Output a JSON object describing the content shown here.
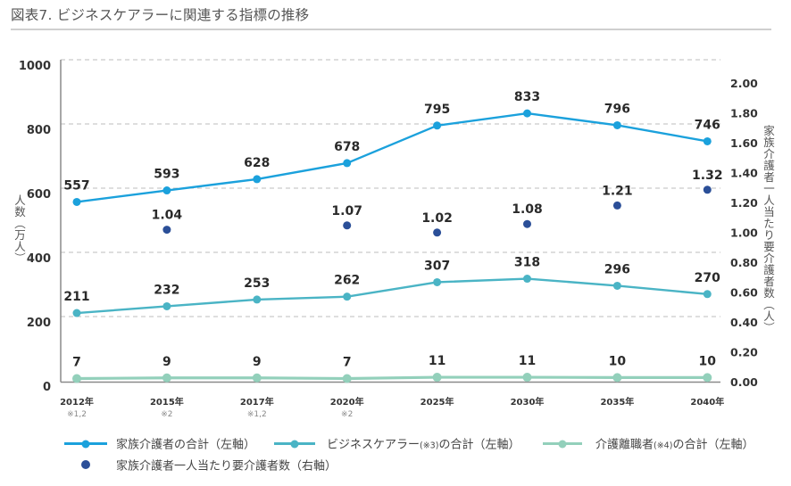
{
  "title": "図表7. ビジネスケアラーに関連する指標の推移",
  "chart_data": {
    "type": "line",
    "title": "図表7. ビジネスケアラーに関連する指標の推移",
    "categories": [
      "2012年",
      "2015年",
      "2017年",
      "2020年",
      "2025年",
      "2030年",
      "2035年",
      "2040年"
    ],
    "category_notes": [
      "※1,2",
      "※2",
      "※1,2",
      "※2",
      "",
      "",
      "",
      ""
    ],
    "left_axis": {
      "label": "人数（万人）",
      "range": [
        0,
        1000
      ],
      "ticks": [
        0,
        200,
        400,
        600,
        800,
        1000
      ]
    },
    "right_axis": {
      "label": "家族介護者一人当たり要介護者数（人）",
      "range": [
        0,
        2
      ],
      "ticks": [
        0,
        0.2,
        0.4,
        0.6,
        0.8,
        1.0,
        1.2,
        1.4,
        1.6,
        1.8,
        2.0
      ],
      "tick_labels": [
        "0.00",
        "0.20",
        "0.40",
        "0.60",
        "0.80",
        "1.00",
        "1.20",
        "1.40",
        "1.60",
        "1.80",
        "2.00"
      ]
    },
    "grid": true,
    "legend_position": "bottom",
    "series": [
      {
        "name": "家族介護者の合計（左軸）",
        "axis": "left",
        "type": "line",
        "color": "#1ba1dc",
        "values": [
          557,
          593,
          628,
          678,
          795,
          833,
          796,
          746
        ]
      },
      {
        "name": "ビジネスケアラー(※3)の合計（左軸）",
        "axis": "left",
        "type": "line",
        "color": "#4ab4c5",
        "values": [
          211,
          232,
          253,
          262,
          307,
          318,
          296,
          270
        ]
      },
      {
        "name": "介護離職者(※4)の合計（左軸）",
        "axis": "left",
        "type": "line",
        "color": "#93d0bb",
        "values": [
          7,
          9,
          9,
          7,
          11,
          11,
          10,
          10
        ]
      },
      {
        "name": "家族介護者一人当たり要介護者数（右軸）",
        "axis": "right",
        "type": "scatter",
        "color": "#2b4f98",
        "values": [
          null,
          1.04,
          null,
          1.07,
          1.02,
          1.08,
          1.21,
          1.32
        ]
      }
    ]
  },
  "legend": {
    "items": [
      {
        "parts": [
          "家族介護者の合計（左軸）"
        ]
      },
      {
        "parts": [
          "ビジネスケアラー",
          "(※3)",
          "の合計（左軸）"
        ]
      },
      {
        "parts": [
          "介護離職者",
          "(※4)",
          "の合計（左軸）"
        ]
      },
      {
        "parts": [
          "家族介護者一人当たり要介護者数（右軸）"
        ]
      }
    ]
  }
}
